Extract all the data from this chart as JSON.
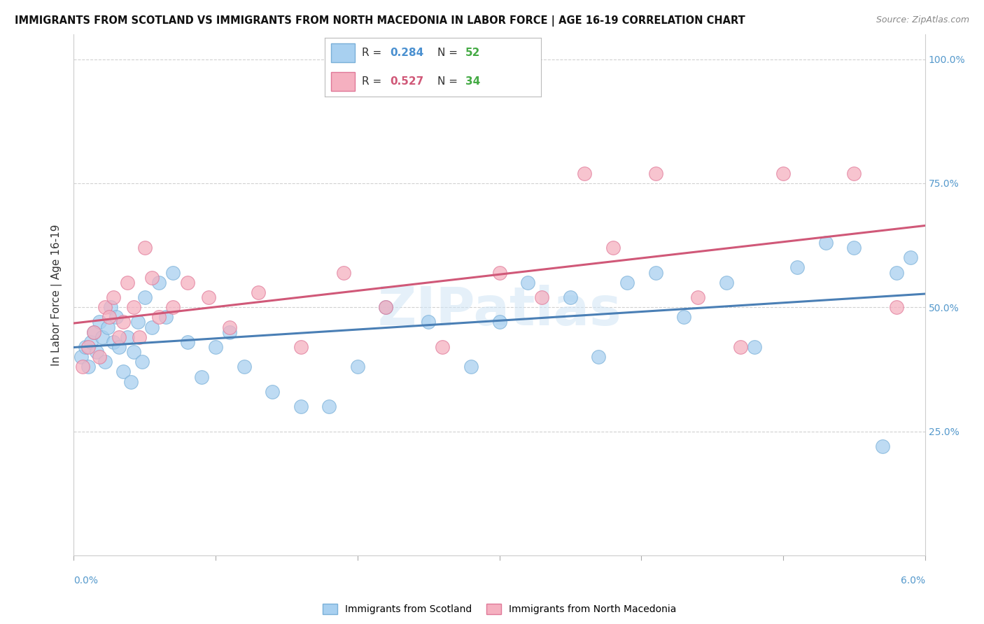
{
  "title": "IMMIGRANTS FROM SCOTLAND VS IMMIGRANTS FROM NORTH MACEDONIA IN LABOR FORCE | AGE 16-19 CORRELATION CHART",
  "source": "Source: ZipAtlas.com",
  "ylabel": "In Labor Force | Age 16-19",
  "scotland_R": 0.284,
  "scotland_N": 52,
  "macedonia_R": 0.527,
  "macedonia_N": 34,
  "scotland_color": "#a8d0f0",
  "scotland_edge": "#7ab0d8",
  "macedonia_color": "#f5b0c0",
  "macedonia_edge": "#e07898",
  "scotland_line_color": "#4a7fb5",
  "macedonia_line_color": "#d05878",
  "watermark": "ZIPatlas",
  "xlim": [
    0.0,
    6.0
  ],
  "ylim": [
    0.0,
    105.0
  ],
  "scotland_x": [
    0.05,
    0.08,
    0.1,
    0.12,
    0.14,
    0.16,
    0.18,
    0.2,
    0.22,
    0.24,
    0.26,
    0.28,
    0.3,
    0.32,
    0.35,
    0.38,
    0.4,
    0.42,
    0.45,
    0.48,
    0.5,
    0.55,
    0.6,
    0.65,
    0.7,
    0.8,
    0.9,
    1.0,
    1.1,
    1.2,
    1.4,
    1.6,
    1.8,
    2.0,
    2.2,
    2.5,
    2.8,
    3.0,
    3.2,
    3.5,
    3.7,
    3.9,
    4.1,
    4.3,
    4.6,
    4.8,
    5.1,
    5.3,
    5.5,
    5.7,
    5.8,
    5.9
  ],
  "scotland_y": [
    40,
    42,
    38,
    43,
    45,
    41,
    47,
    44,
    39,
    46,
    50,
    43,
    48,
    42,
    37,
    44,
    35,
    41,
    47,
    39,
    52,
    46,
    55,
    48,
    57,
    43,
    36,
    42,
    45,
    38,
    33,
    30,
    30,
    38,
    50,
    47,
    38,
    47,
    55,
    52,
    40,
    55,
    57,
    48,
    55,
    42,
    58,
    63,
    62,
    22,
    57,
    60
  ],
  "macedonia_x": [
    0.06,
    0.1,
    0.14,
    0.18,
    0.22,
    0.25,
    0.28,
    0.32,
    0.35,
    0.38,
    0.42,
    0.46,
    0.5,
    0.55,
    0.6,
    0.7,
    0.8,
    0.95,
    1.1,
    1.3,
    1.6,
    1.9,
    2.2,
    2.6,
    3.0,
    3.3,
    3.6,
    3.8,
    4.1,
    4.4,
    4.7,
    5.0,
    5.5,
    5.8
  ],
  "macedonia_y": [
    38,
    42,
    45,
    40,
    50,
    48,
    52,
    44,
    47,
    55,
    50,
    44,
    62,
    56,
    48,
    50,
    55,
    52,
    46,
    53,
    42,
    57,
    50,
    42,
    57,
    52,
    77,
    62,
    77,
    52,
    42,
    77,
    77,
    50
  ]
}
